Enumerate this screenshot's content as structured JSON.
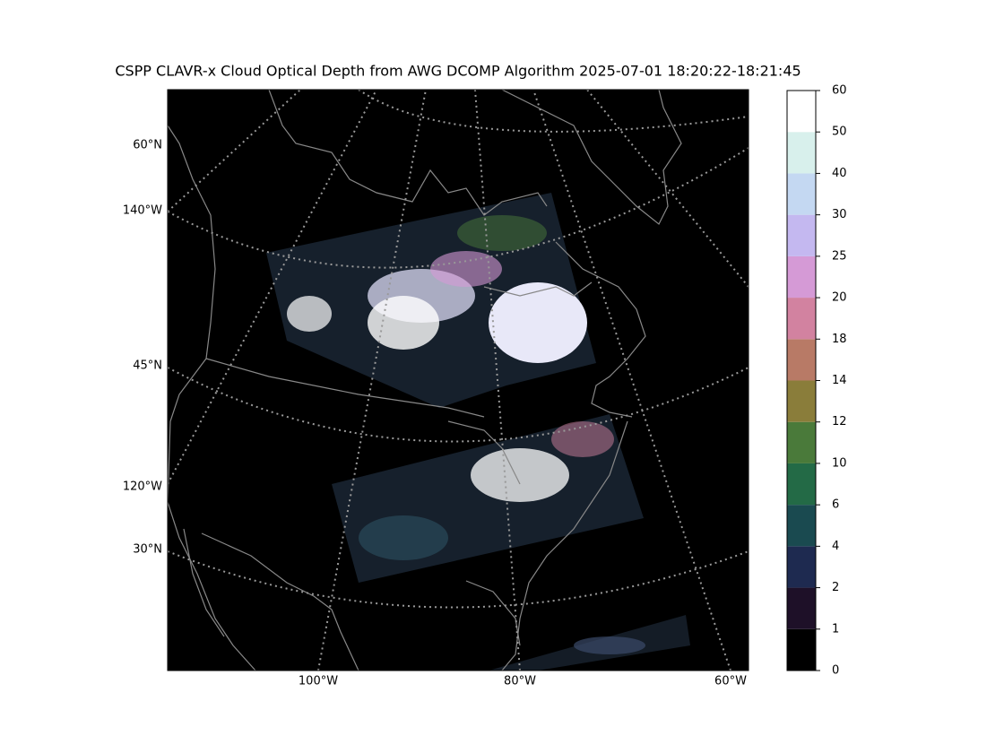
{
  "title": "CSPP CLAVR-x Cloud Optical Depth from AWG DCOMP Algorithm 2025-07-01 18:20:22-18:21:45",
  "map": {
    "lat_labels": [
      "60°N",
      "45°N",
      "30°N"
    ],
    "lon_left_labels": [
      "140°W",
      "120°W"
    ],
    "lon_bottom_labels": [
      "100°W",
      "80°W",
      "60°W"
    ]
  },
  "colorbar": {
    "ticks": [
      0,
      1,
      2,
      4,
      6,
      10,
      12,
      14,
      18,
      20,
      25,
      30,
      40,
      50,
      60
    ],
    "colors": [
      "#000000",
      "#1e1028",
      "#1e2a50",
      "#1a4a50",
      "#236a46",
      "#4a7a3a",
      "#8a7d3a",
      "#b87a66",
      "#d282a0",
      "#d59ad6",
      "#c4b8f0",
      "#c4d8f2",
      "#d8f0ec",
      "#ffffff"
    ]
  }
}
